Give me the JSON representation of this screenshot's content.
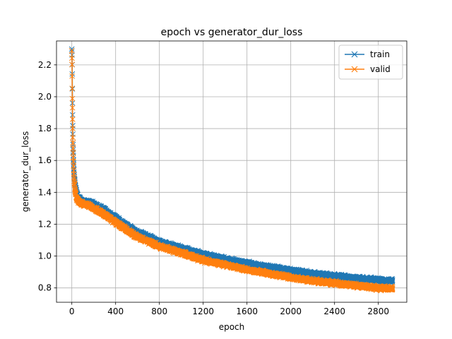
{
  "chart_data": {
    "type": "line",
    "title": "epoch vs generator_dur_loss",
    "xlabel": "epoch",
    "ylabel": "generator_dur_loss",
    "xlim": [
      -140,
      3060
    ],
    "ylim": [
      0.71,
      2.35
    ],
    "xticks": [
      0,
      400,
      800,
      1200,
      1600,
      2000,
      2400,
      2800
    ],
    "yticks": [
      0.8,
      1.0,
      1.2,
      1.4,
      1.6,
      1.8,
      2.0,
      2.2
    ],
    "grid": true,
    "legend_position": "top-right",
    "marker": "x",
    "x_max": 2930,
    "series": [
      {
        "name": "train",
        "color": "#1f77b4",
        "noise": 0.012,
        "curve": [
          [
            0,
            2.31
          ],
          [
            2,
            2.26
          ],
          [
            4,
            2.14
          ],
          [
            6,
            1.95
          ],
          [
            8,
            1.82
          ],
          [
            10,
            1.72
          ],
          [
            15,
            1.6
          ],
          [
            20,
            1.52
          ],
          [
            30,
            1.45
          ],
          [
            40,
            1.41
          ],
          [
            60,
            1.37
          ],
          [
            80,
            1.355
          ],
          [
            100,
            1.345
          ],
          [
            150,
            1.34
          ],
          [
            200,
            1.325
          ],
          [
            300,
            1.29
          ],
          [
            400,
            1.24
          ],
          [
            500,
            1.19
          ],
          [
            600,
            1.15
          ],
          [
            800,
            1.09
          ],
          [
            1000,
            1.05
          ],
          [
            1200,
            1.01
          ],
          [
            1400,
            0.98
          ],
          [
            1600,
            0.955
          ],
          [
            1800,
            0.93
          ],
          [
            2000,
            0.91
          ],
          [
            2200,
            0.89
          ],
          [
            2400,
            0.875
          ],
          [
            2600,
            0.86
          ],
          [
            2800,
            0.85
          ],
          [
            2930,
            0.845
          ]
        ]
      },
      {
        "name": "valid",
        "color": "#ff7f0e",
        "noise": 0.012,
        "curve": [
          [
            0,
            2.29
          ],
          [
            2,
            2.2
          ],
          [
            4,
            2.05
          ],
          [
            6,
            1.92
          ],
          [
            8,
            1.8
          ],
          [
            10,
            1.7
          ],
          [
            15,
            1.57
          ],
          [
            20,
            1.48
          ],
          [
            30,
            1.41
          ],
          [
            40,
            1.37
          ],
          [
            60,
            1.345
          ],
          [
            80,
            1.335
          ],
          [
            100,
            1.33
          ],
          [
            150,
            1.32
          ],
          [
            200,
            1.3
          ],
          [
            300,
            1.26
          ],
          [
            400,
            1.21
          ],
          [
            500,
            1.165
          ],
          [
            600,
            1.12
          ],
          [
            800,
            1.06
          ],
          [
            1000,
            1.02
          ],
          [
            1200,
            0.975
          ],
          [
            1400,
            0.945
          ],
          [
            1600,
            0.915
          ],
          [
            1800,
            0.89
          ],
          [
            2000,
            0.865
          ],
          [
            2200,
            0.845
          ],
          [
            2400,
            0.83
          ],
          [
            2600,
            0.815
          ],
          [
            2800,
            0.8
          ],
          [
            2930,
            0.795
          ]
        ]
      }
    ]
  }
}
